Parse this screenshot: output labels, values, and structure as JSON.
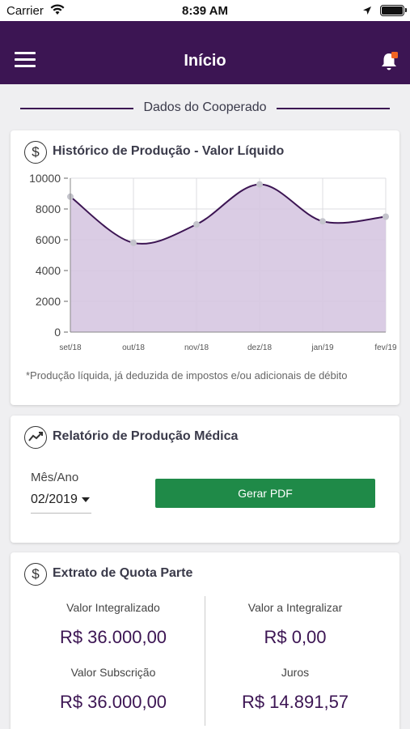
{
  "status_bar": {
    "carrier": "Carrier",
    "time": "8:39 AM"
  },
  "nav": {
    "title": "Início"
  },
  "section": {
    "title": "Dados do Cooperado"
  },
  "production_chart": {
    "title": "Histórico de Produção - Valor Líquido",
    "icon": "dollar-circle-icon",
    "note": "*Produção líquida, já deduzida de impostos e/ou adicionais de débito"
  },
  "chart_data": {
    "type": "area",
    "categories": [
      "set/18",
      "out/18",
      "nov/18",
      "dez/18",
      "jan/19",
      "fev/19"
    ],
    "series": [
      {
        "values": [
          8800,
          5800,
          7000,
          9600,
          7200,
          7500
        ]
      }
    ],
    "ylim": [
      0,
      10000
    ],
    "yticks": [
      0,
      2000,
      4000,
      6000,
      8000,
      10000
    ],
    "grid": true,
    "colors": {
      "line": "#3c1553",
      "fill": "#d6c6e1",
      "point": "#c4c4cc"
    }
  },
  "report": {
    "title": "Relatório de Produção Médica",
    "icon": "trending-chart-icon",
    "month_label": "Mês/Ano",
    "month_value": "02/2019",
    "button_label": "Gerar PDF"
  },
  "quota": {
    "title": "Extrato de Quota Parte",
    "icon": "dollar-circle-icon",
    "items": [
      {
        "label": "Valor Integralizado",
        "value": "R$ 36.000,00"
      },
      {
        "label": "Valor a Integralizar",
        "value": "R$ 0,00"
      },
      {
        "label": "Valor Subscrição",
        "value": "R$ 36.000,00"
      },
      {
        "label": "Juros",
        "value": "R$ 14.891,57"
      }
    ]
  },
  "colors": {
    "brand": "#3c1553",
    "button": "#1f8a48",
    "notification": "#f26522"
  }
}
